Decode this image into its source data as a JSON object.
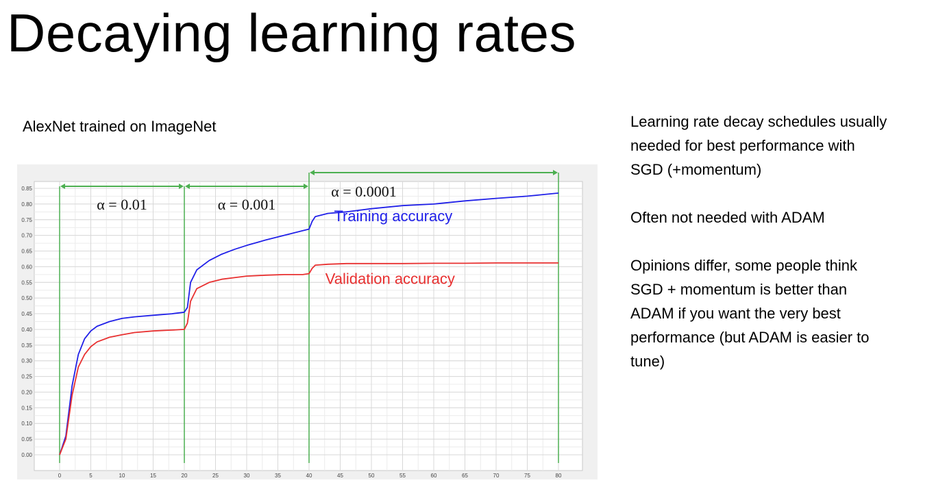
{
  "slide": {
    "title": "Decaying learning rates",
    "chart_caption": "AlexNet trained on ImageNet"
  },
  "notes": [
    [
      "Learning rate decay schedules usually",
      "needed for best performance with",
      "SGD (+momentum)"
    ],
    [
      "Often not needed with ADAM"
    ],
    [
      "Opinions differ, some people think",
      "SGD + momentum is better than",
      "ADAM if you want the very best",
      "performance (but ADAM is easier to",
      "tune)"
    ]
  ],
  "chart_data": {
    "type": "line",
    "xlim": [
      0,
      80
    ],
    "ylim": [
      0,
      0.85
    ],
    "x_ticks": [
      "0",
      "5",
      "10",
      "15",
      "20",
      "25",
      "30",
      "35",
      "40",
      "45",
      "50",
      "55",
      "60",
      "65",
      "70",
      "75",
      "80"
    ],
    "y_ticks": [
      "0.00",
      "0.05",
      "0.10",
      "0.15",
      "0.20",
      "0.25",
      "0.30",
      "0.35",
      "0.40",
      "0.45",
      "0.50",
      "0.55",
      "0.60",
      "0.65",
      "0.70",
      "0.75",
      "0.80",
      "0.85"
    ],
    "grid": true,
    "series": [
      {
        "name": "Training accuracy",
        "color": "#2020e8",
        "x": [
          0,
          1,
          2,
          3,
          4,
          5,
          6,
          8,
          10,
          12,
          15,
          18,
          20,
          20.5,
          21,
          22,
          24,
          26,
          28,
          30,
          33,
          36,
          39,
          40,
          40.5,
          41,
          43,
          46,
          50,
          55,
          60,
          65,
          70,
          75,
          80
        ],
        "y": [
          0.0,
          0.06,
          0.22,
          0.32,
          0.37,
          0.395,
          0.41,
          0.425,
          0.435,
          0.44,
          0.445,
          0.45,
          0.455,
          0.47,
          0.55,
          0.59,
          0.62,
          0.64,
          0.655,
          0.668,
          0.685,
          0.7,
          0.715,
          0.72,
          0.745,
          0.76,
          0.77,
          0.775,
          0.785,
          0.795,
          0.8,
          0.81,
          0.818,
          0.825,
          0.835
        ]
      },
      {
        "name": "Validation accuracy",
        "color": "#e83030",
        "x": [
          0,
          1,
          2,
          3,
          4,
          5,
          6,
          8,
          10,
          12,
          15,
          18,
          20,
          20.5,
          21,
          22,
          24,
          26,
          28,
          30,
          33,
          36,
          39,
          40,
          40.5,
          41,
          43,
          46,
          50,
          55,
          60,
          65,
          70,
          75,
          80
        ],
        "y": [
          0.0,
          0.05,
          0.19,
          0.28,
          0.32,
          0.345,
          0.36,
          0.375,
          0.383,
          0.39,
          0.395,
          0.398,
          0.4,
          0.42,
          0.49,
          0.53,
          0.55,
          0.56,
          0.565,
          0.57,
          0.573,
          0.575,
          0.575,
          0.578,
          0.595,
          0.605,
          0.608,
          0.61,
          0.61,
          0.61,
          0.611,
          0.611,
          0.612,
          0.612,
          0.612
        ]
      }
    ],
    "phase_boundaries": [
      0,
      20,
      40,
      80
    ],
    "phases": [
      {
        "label": "α = 0.01",
        "from": 0,
        "to": 20
      },
      {
        "label": "α = 0.001",
        "from": 20,
        "to": 40
      },
      {
        "label": "α = 0.0001",
        "from": 40,
        "to": 80
      }
    ],
    "annotation_color": "#4caf50"
  }
}
